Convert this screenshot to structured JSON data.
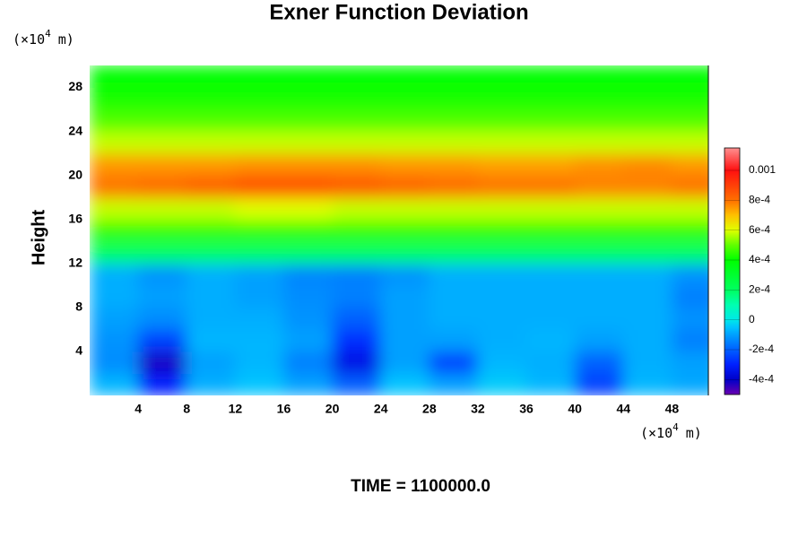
{
  "chart_data": {
    "type": "contour",
    "title": "Exner Function Deviation",
    "ylabel": "Height",
    "footer": "TIME = 1100000.0",
    "x_unit": {
      "base": "(×10",
      "exp": "4",
      "unit": "m)"
    },
    "y_unit": {
      "base": "(×10",
      "exp": "4",
      "unit": "m)"
    },
    "xlim": [
      0,
      51
    ],
    "ylim": [
      0,
      30
    ],
    "xticks": [
      4,
      8,
      12,
      16,
      20,
      24,
      28,
      32,
      36,
      40,
      44,
      48
    ],
    "yticks": [
      4,
      8,
      12,
      16,
      20,
      24,
      28
    ],
    "x": [
      2,
      6,
      10,
      14,
      18,
      22,
      26,
      30,
      34,
      38,
      42,
      46,
      50
    ],
    "y": [
      1,
      3,
      5,
      7,
      9,
      11,
      13,
      15,
      17,
      19,
      21,
      23,
      25,
      27,
      29
    ],
    "z": [
      [
        -7e-05,
        -0.0003,
        -8e-05,
        -5e-05,
        -0.0001,
        -0.0002,
        -5e-05,
        -0.0001,
        -4e-05,
        -7e-05,
        -0.00025,
        -7e-05,
        -9e-05
      ],
      [
        -0.00013,
        -0.00042,
        -0.0001,
        -7e-05,
        -0.00015,
        -0.00035,
        -0.0001,
        -0.00025,
        -7e-05,
        -8e-05,
        -0.0002,
        -8e-05,
        -0.0001
      ],
      [
        -0.00012,
        -0.00025,
        -7e-05,
        -7e-05,
        -0.0001,
        -0.00028,
        -0.0001,
        -0.0001,
        -8e-05,
        -7e-05,
        -0.0001,
        -8e-05,
        -0.00015
      ],
      [
        -0.0001,
        -0.00013,
        -8e-05,
        -8e-05,
        -0.00012,
        -0.0002,
        -0.0001,
        -8e-05,
        -8e-05,
        -8e-05,
        -8e-05,
        -8e-05,
        -0.00012
      ],
      [
        -8e-05,
        -0.0001,
        -8e-05,
        -0.0001,
        -0.00013,
        -0.00015,
        -0.0001,
        -8e-05,
        -8e-05,
        -8e-05,
        -8e-05,
        -8e-05,
        -0.00015
      ],
      [
        -8e-05,
        -0.00012,
        -8e-05,
        -0.0001,
        -0.00014,
        -0.00015,
        -0.00012,
        -8e-05,
        -8e-05,
        -8e-05,
        -8e-05,
        -8e-05,
        -0.00012
      ],
      [
        0.0002,
        0.0002,
        0.0002,
        0.0002,
        0.0002,
        0.0002,
        0.0002,
        0.0002,
        0.0002,
        0.0002,
        0.0002,
        0.0002,
        0.0002
      ],
      [
        0.00045,
        0.00045,
        0.00045,
        0.00045,
        0.00045,
        0.00045,
        0.00045,
        0.00045,
        0.00045,
        0.00045,
        0.00045,
        0.00045,
        0.00045
      ],
      [
        0.00058,
        0.00058,
        0.00058,
        0.0006,
        0.0006,
        0.00058,
        0.00058,
        0.00058,
        0.00058,
        0.00058,
        0.00058,
        0.00058,
        0.00058
      ],
      [
        0.0008,
        0.00082,
        0.00085,
        0.00088,
        0.00088,
        0.00086,
        0.00084,
        0.00082,
        0.0008,
        0.0008,
        0.00078,
        0.00078,
        0.0008
      ],
      [
        0.00075,
        0.00075,
        0.00075,
        0.00076,
        0.00076,
        0.00076,
        0.00075,
        0.00075,
        0.00074,
        0.00074,
        0.00076,
        0.00077,
        0.00075
      ],
      [
        0.00058,
        0.00058,
        0.00058,
        0.00058,
        0.00058,
        0.00058,
        0.00058,
        0.00058,
        0.00058,
        0.00058,
        0.00058,
        0.00058,
        0.00058
      ],
      [
        0.00048,
        0.00048,
        0.00048,
        0.00048,
        0.00048,
        0.00048,
        0.00048,
        0.00048,
        0.00048,
        0.00048,
        0.00048,
        0.00048,
        0.00048
      ],
      [
        0.00042,
        0.00042,
        0.00042,
        0.00042,
        0.00042,
        0.00042,
        0.00042,
        0.00042,
        0.00042,
        0.00042,
        0.00042,
        0.00042,
        0.00042
      ],
      [
        0.0004,
        0.0004,
        0.0004,
        0.0004,
        0.0004,
        0.0004,
        0.0004,
        0.0004,
        0.0004,
        0.0004,
        0.0004,
        0.0004,
        0.0004
      ]
    ],
    "clim": [
      -0.0005,
      0.00115
    ],
    "cticks": [
      {
        "value": -0.0004,
        "label": "-4e-4"
      },
      {
        "value": -0.0002,
        "label": "-2e-4"
      },
      0,
      {
        "value": 0.0002,
        "label": "2e-4"
      },
      {
        "value": 0.0004,
        "label": "4e-4"
      },
      {
        "value": 0.0006,
        "label": "6e-4"
      },
      {
        "value": 0.0008,
        "label": "8e-4"
      },
      0.001
    ],
    "colormap": [
      {
        "value": -0.0005,
        "color": "#6a00b0"
      },
      {
        "value": -0.0004,
        "color": "#0000c8"
      },
      {
        "value": -0.0003,
        "color": "#0020ff"
      },
      {
        "value": -0.0002,
        "color": "#0060ff"
      },
      {
        "value": -0.0001,
        "color": "#00a0ff"
      },
      {
        "value": -5e-05,
        "color": "#00c4ff"
      },
      {
        "value": 0,
        "color": "#00e8e8"
      },
      {
        "value": 0.0001,
        "color": "#00ffb0"
      },
      {
        "value": 0.0002,
        "color": "#00ff60"
      },
      {
        "value": 0.0004,
        "color": "#00ff00"
      },
      {
        "value": 0.0005,
        "color": "#60ff00"
      },
      {
        "value": 0.0006,
        "color": "#e0ff00"
      },
      {
        "value": 0.0007,
        "color": "#ffc000"
      },
      {
        "value": 0.0008,
        "color": "#ff7000"
      },
      {
        "value": 0.001,
        "color": "#ff1010"
      },
      {
        "value": 0.00115,
        "color": "#ff9090"
      }
    ]
  }
}
